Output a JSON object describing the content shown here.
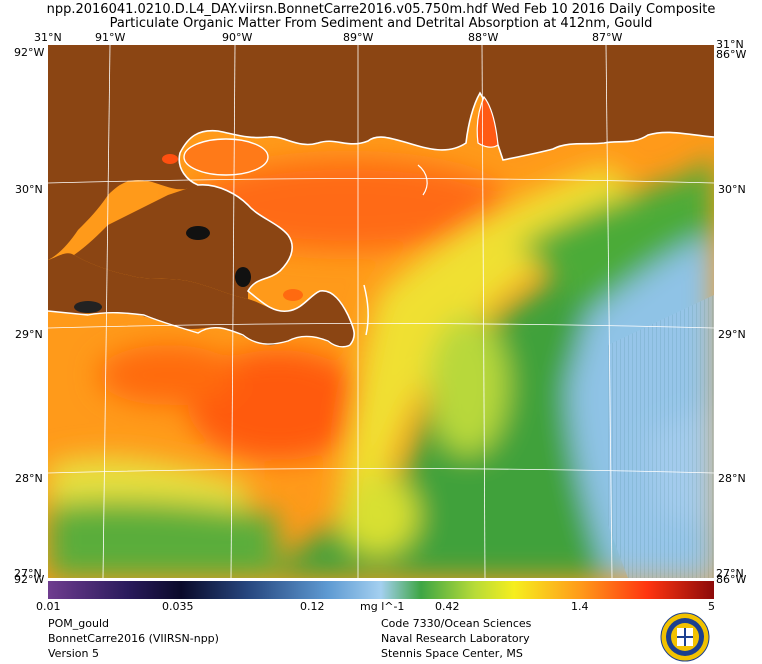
{
  "header": {
    "line1": "npp.2016041.0210.D.L4_DAY.viirsn.BonnetCarre2016.v05.750m.hdf    Wed Feb 10 2016 Daily Composite",
    "line2": "Particulate Organic Matter From Sediment and Detrital Absorption at 412nm, Gould"
  },
  "map": {
    "lon_labels": [
      "91°W",
      "90°W",
      "89°W",
      "88°W",
      "87°W"
    ],
    "lat_labels": [
      "30°N",
      "29°N",
      "28°N"
    ],
    "corner_top_left": "31°N",
    "corner_top_left_lon": "92°W",
    "corner_top_right": "31°N",
    "corner_top_right_lon": "86°W",
    "corner_bottom_left": "27°N",
    "corner_bottom_left_lon": "92°W",
    "corner_bottom_right": "27°N",
    "corner_bottom_right_lon": "86°W",
    "colors": {
      "land": "#8b4513",
      "coast": "#ffffff",
      "grid": "#ffffff"
    }
  },
  "colorbar": {
    "ticks": [
      "0.01",
      "0.035",
      "0.12",
      "0.42",
      "1.4",
      "5"
    ],
    "units": "mg l^-1"
  },
  "footer": {
    "left": [
      "POM_gould",
      "BonnetCarre2016 (VIIRSN-npp)",
      "Version 5"
    ],
    "right": [
      "Code 7330/Ocean Sciences",
      "Naval Research Laboratory",
      "Stennis Space Center, MS"
    ]
  },
  "logo": {
    "icon": "nrl-seal-icon"
  }
}
